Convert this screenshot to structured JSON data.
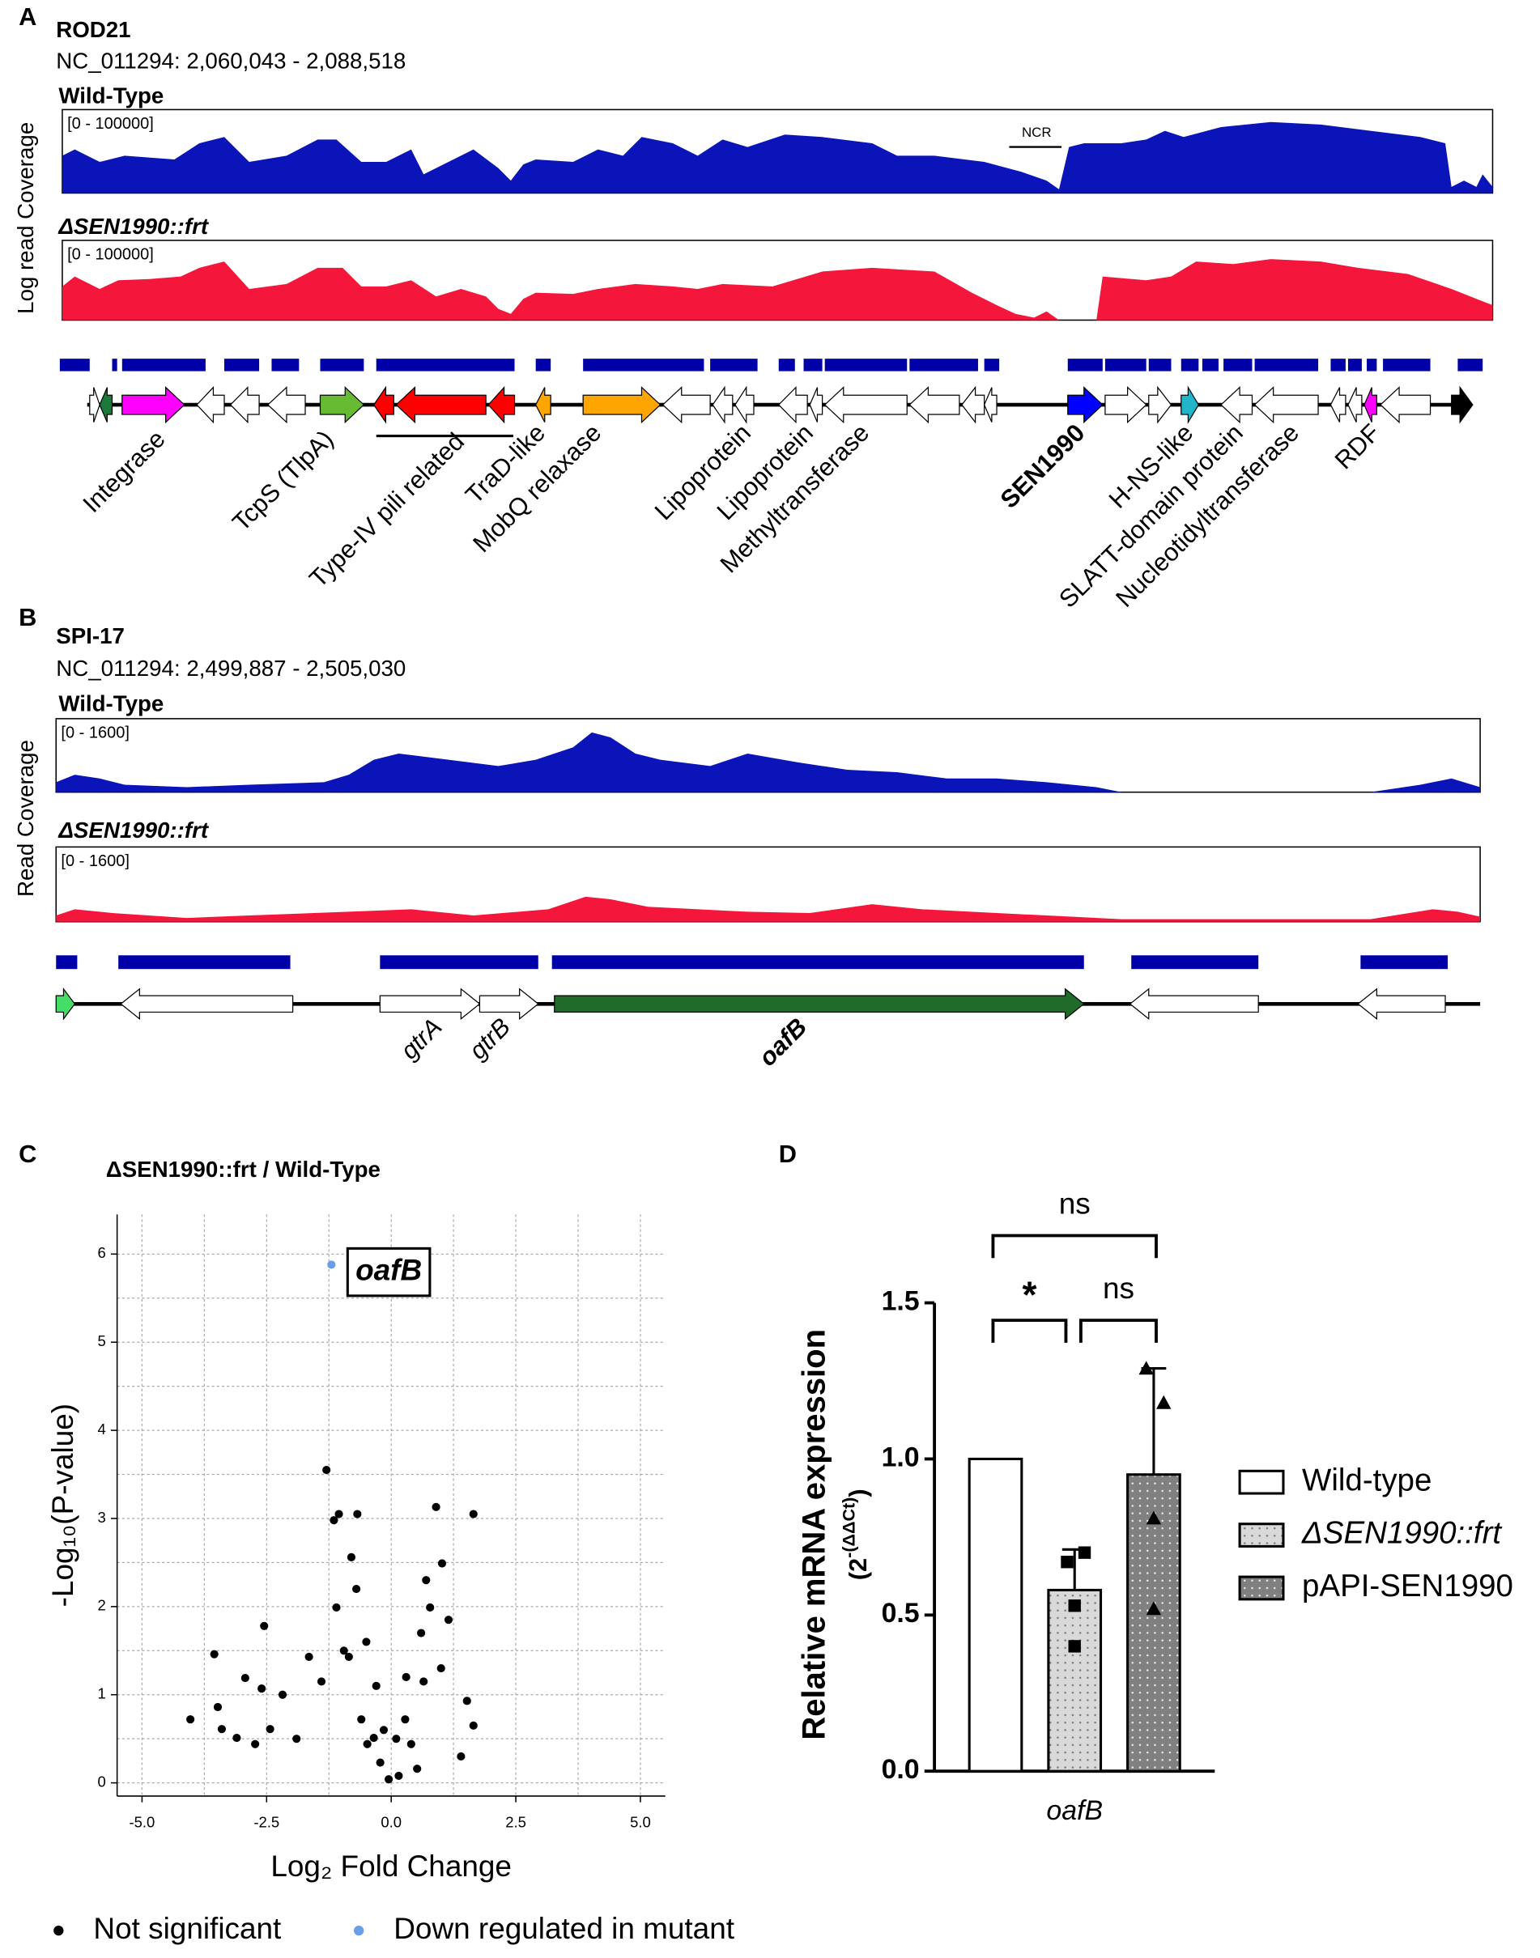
{
  "panel_a": {
    "letter": "A",
    "title": "ROD21",
    "locus": "NC_011294:  2,060,043  - 2,088,518",
    "y_label": "Log read Coverage",
    "tracks": [
      {
        "name": "Wild-Type",
        "range_label": "[0 - 100000]"
      },
      {
        "name": "ΔSEN1990::frt",
        "range_label": "[0 - 100000]"
      }
    ],
    "region_label": "NCR",
    "genes": [
      "Integrase",
      "TcpS (TlpA)",
      "Type-IV pili related",
      "TraD-like",
      "MobQ relaxase",
      "Lipoprotein",
      "Lipoprotein",
      "Methyltransferase",
      "SEN1990",
      "H-NS-like",
      "SLATT-domain protein",
      "Nucleotidyltransferase",
      "RDF"
    ]
  },
  "panel_b": {
    "letter": "B",
    "title": "SPI-17",
    "locus": "NC_011294:  2,499,887  - 2,505,030",
    "y_label": "Read Coverage",
    "tracks": [
      {
        "name": "Wild-Type",
        "range_label": "[0 - 1600]"
      },
      {
        "name": "ΔSEN1990::frt",
        "range_label": "[0 - 1600]"
      }
    ],
    "genes": [
      "gtrA",
      "gtrB",
      "oafB"
    ]
  },
  "chart_data": [
    {
      "type": "scatter",
      "letter": "C",
      "title": "ΔSEN1990::frt  / Wild-Type",
      "x_label": "Log₂ Fold Change",
      "y_label": "-Log₁₀(P-value)",
      "xlim": [
        -5.5,
        5.5
      ],
      "ylim": [
        -0.15,
        6.45
      ],
      "xticks": [
        {
          "value": -5,
          "label": "-5.0"
        },
        {
          "value": -2.5,
          "label": "-2.5"
        },
        {
          "value": 0,
          "label": "0.0"
        },
        {
          "value": 2.5,
          "label": "2.5"
        },
        {
          "value": 5,
          "label": "5.0"
        }
      ],
      "yticks": [
        0,
        1,
        2,
        3,
        4,
        5,
        6
      ],
      "grid": true,
      "legend": "bottom",
      "annotation": "oafB",
      "series": [
        {
          "name": "Not significant",
          "color": "#000000",
          "x": [
            -4.03,
            -3.55,
            -3.48,
            -3.4,
            -3.1,
            -2.93,
            -2.73,
            -2.55,
            -2.6,
            -2.43,
            -2.18,
            -1.9,
            -1.65,
            -1.3,
            -1.15,
            -1.05,
            -0.68,
            -0.85,
            -0.48,
            -0.22,
            -0.05,
            0.15,
            0.4,
            0.65,
            0.9,
            1.02,
            1.15,
            1.65,
            1.52,
            1.65,
            1.4,
            0.78,
            -0.8,
            -1.1,
            -1.4,
            -0.6,
            -0.35,
            0.28,
            0.52,
            -0.3,
            0.3,
            -0.5,
            0.6,
            -0.15,
            0.1,
            -0.7,
            0.7,
            -0.95,
            1.0
          ],
          "y": [
            0.72,
            1.46,
            0.86,
            0.61,
            0.51,
            1.19,
            0.44,
            1.78,
            1.07,
            0.61,
            1.0,
            0.5,
            1.43,
            3.55,
            2.98,
            3.05,
            3.05,
            1.43,
            0.44,
            0.23,
            0.04,
            0.08,
            0.44,
            1.15,
            3.13,
            2.49,
            1.85,
            3.05,
            0.93,
            0.65,
            0.3,
            1.99,
            2.56,
            1.99,
            1.15,
            0.72,
            0.51,
            0.72,
            0.16,
            1.1,
            1.2,
            1.6,
            1.7,
            0.6,
            0.5,
            2.2,
            2.3,
            1.5,
            1.3
          ]
        },
        {
          "name": "Down regulated in mutant",
          "color": "#6a9ee8",
          "x": [
            -1.2
          ],
          "y": [
            5.88
          ]
        }
      ]
    },
    {
      "type": "bar",
      "letter": "D",
      "y_label": "Relative mRNA expression",
      "y_label_unit_parts": [
        "(2",
        "-(ΔΔCt)",
        ")"
      ],
      "categories": [
        "oafB"
      ],
      "ylim": [
        0,
        1.5
      ],
      "yticks": [
        {
          "value": 0,
          "label": "0.0"
        },
        {
          "value": 0.5,
          "label": "0.5"
        },
        {
          "value": 1,
          "label": "1.0"
        },
        {
          "value": 1.5,
          "label": "1.5"
        }
      ],
      "legend": "right",
      "series": [
        {
          "name": "Wild-type",
          "color": "#ffffff",
          "values": [
            1.0
          ]
        },
        {
          "name": "ΔSEN1990::frt",
          "color": "#d9d9d9",
          "pattern": "dots",
          "values": [
            0.58
          ],
          "errors": [
            0.13
          ],
          "points": [
            0.67,
            0.7,
            0.53,
            0.4
          ],
          "marker": "square"
        },
        {
          "name": "pAPI-SEN1990",
          "color": "#808080",
          "pattern": "dots",
          "values": [
            0.95
          ],
          "errors": [
            0.34
          ],
          "points": [
            1.29,
            1.18,
            0.81,
            0.52
          ],
          "marker": "triangle"
        }
      ],
      "significance": [
        "ns",
        "*",
        "ns"
      ]
    }
  ]
}
